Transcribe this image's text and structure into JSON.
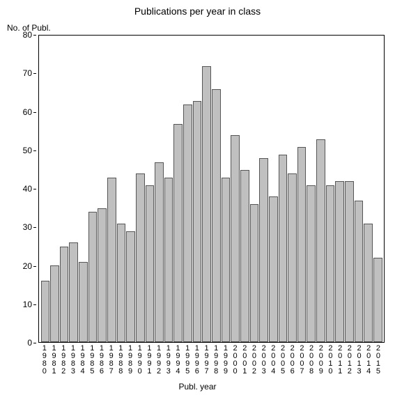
{
  "chart": {
    "type": "bar",
    "title": "Publications per year in class",
    "title_fontsize": 14,
    "ylabel": "No. of Publ.",
    "xlabel": "Publ. year",
    "label_fontsize": 12,
    "ylim": [
      0,
      80
    ],
    "ytick_step": 10,
    "yticks": [
      0,
      10,
      20,
      30,
      40,
      50,
      60,
      70,
      80
    ],
    "categories": [
      "1980",
      "1981",
      "1982",
      "1983",
      "1984",
      "1985",
      "1986",
      "1987",
      "1988",
      "1989",
      "1990",
      "1991",
      "1992",
      "1993",
      "1994",
      "1995",
      "1996",
      "1997",
      "1998",
      "1999",
      "2000",
      "2001",
      "2002",
      "2003",
      "2004",
      "2005",
      "2006",
      "2007",
      "2008",
      "2009",
      "2010",
      "2011",
      "2012",
      "2013",
      "2014",
      "2015"
    ],
    "values": [
      16,
      20,
      25,
      26,
      21,
      34,
      35,
      43,
      31,
      29,
      44,
      41,
      47,
      43,
      57,
      62,
      63,
      72,
      66,
      43,
      54,
      45,
      36,
      48,
      38,
      49,
      44,
      51,
      41,
      53,
      41,
      42,
      42,
      37,
      31,
      22
    ],
    "bar_fill_color": "#c0c0c0",
    "bar_border_color": "#555555",
    "background_color": "#ffffff",
    "axis_color": "#000000",
    "text_color": "#000000",
    "tick_fontsize": 12,
    "xtick_fontsize": 11
  }
}
